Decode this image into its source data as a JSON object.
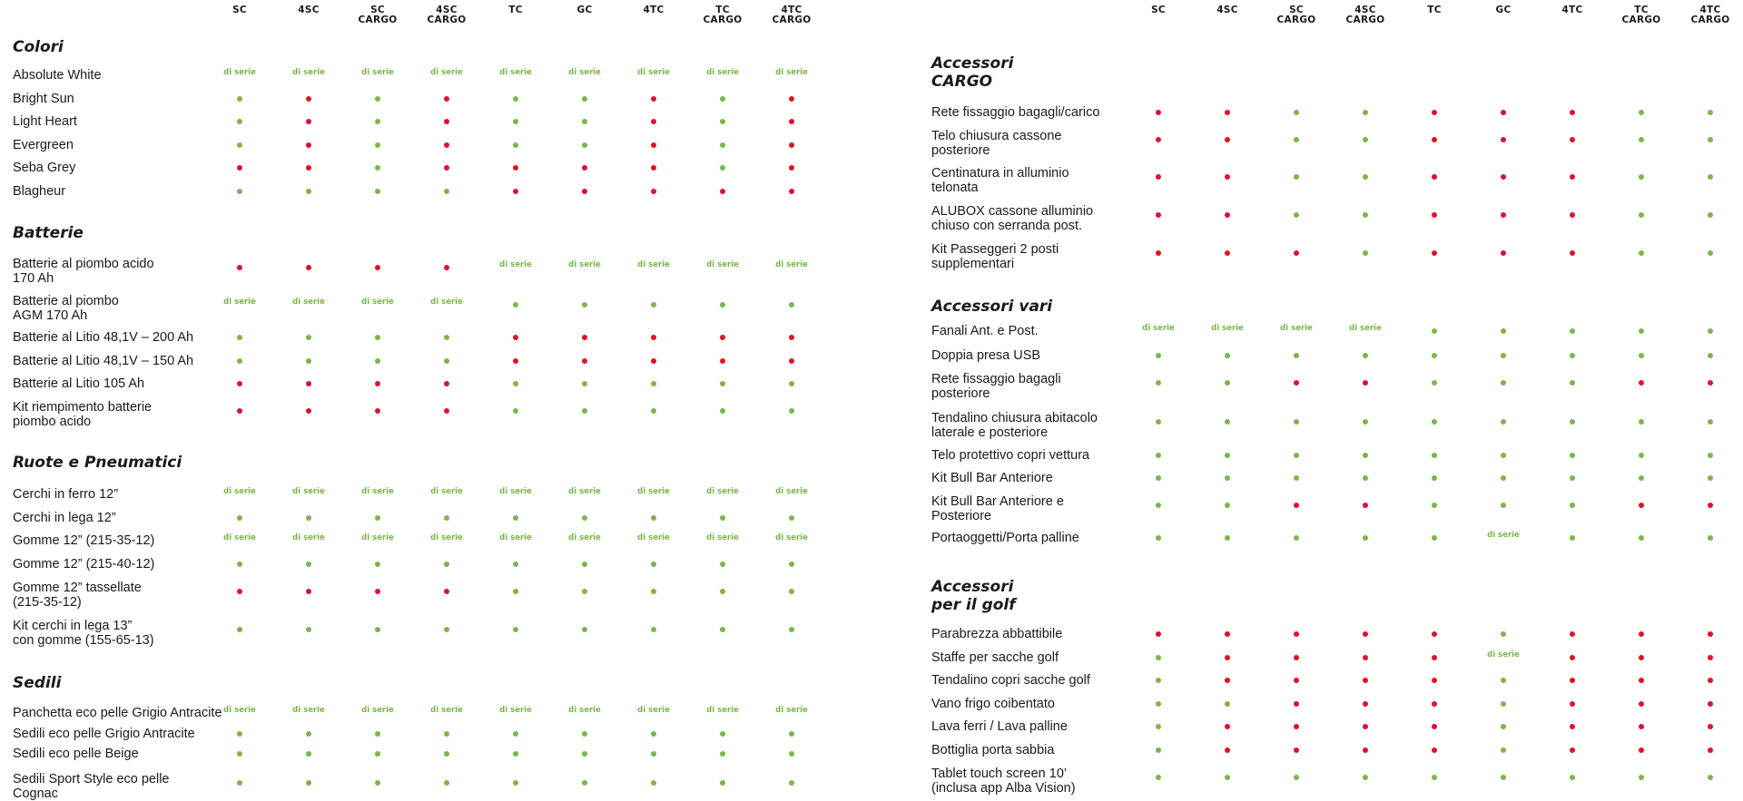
{
  "models": [
    "SC",
    "4SC",
    "SC\nCARGO",
    "4SC\nCARGO",
    "TC",
    "GC",
    "4TC",
    "TC\nCARGO",
    "4TC\nCARGO"
  ],
  "standard_label": "di serie",
  "colors": {
    "available": "#7ab648",
    "not_available": "#e0112b",
    "standard": "#7ab648"
  },
  "legend_codes": {
    "g": "available",
    "r": "not available",
    "s": "di serie"
  },
  "left": {
    "sections": [
      {
        "title": "Colori",
        "rows": [
          {
            "label": "Absolute White",
            "values": [
              "s",
              "s",
              "s",
              "s",
              "s",
              "s",
              "s",
              "s",
              "s"
            ]
          },
          {
            "label": "Bright Sun",
            "values": [
              "g",
              "r",
              "g",
              "r",
              "g",
              "g",
              "r",
              "g",
              "r"
            ]
          },
          {
            "label": "Light Heart",
            "values": [
              "g",
              "r",
              "g",
              "r",
              "g",
              "g",
              "r",
              "g",
              "r"
            ]
          },
          {
            "label": "Evergreen",
            "values": [
              "g",
              "r",
              "g",
              "r",
              "g",
              "g",
              "r",
              "g",
              "r"
            ]
          },
          {
            "label": "Seba Grey",
            "values": [
              "r",
              "r",
              "g",
              "r",
              "r",
              "r",
              "r",
              "g",
              "r"
            ]
          },
          {
            "label": "Blagheur",
            "values": [
              "g",
              "g",
              "g",
              "g",
              "r",
              "r",
              "r",
              "r",
              "r"
            ]
          }
        ]
      },
      {
        "title": "Batterie",
        "rows": [
          {
            "label": "Batterie al piombo acido\n170 Ah",
            "values": [
              "r",
              "r",
              "r",
              "r",
              "s",
              "s",
              "s",
              "s",
              "s"
            ]
          },
          {
            "label": "Batterie al piombo\nAGM 170 Ah",
            "values": [
              "s",
              "s",
              "s",
              "s",
              "g",
              "g",
              "g",
              "g",
              "g"
            ]
          },
          {
            "label": "Batterie al Litio 48,1V – 200 Ah",
            "values": [
              "g",
              "g",
              "g",
              "g",
              "r",
              "r",
              "r",
              "r",
              "r"
            ]
          },
          {
            "label": "Batterie al Litio 48,1V – 150 Ah",
            "values": [
              "g",
              "g",
              "g",
              "g",
              "r",
              "r",
              "r",
              "r",
              "r"
            ]
          },
          {
            "label": "Batterie al Litio 105 Ah",
            "values": [
              "r",
              "r",
              "r",
              "r",
              "g",
              "g",
              "g",
              "g",
              "g"
            ]
          },
          {
            "label": "Kit riempimento batterie\npiombo acido",
            "values": [
              "r",
              "r",
              "r",
              "r",
              "g",
              "g",
              "g",
              "g",
              "g"
            ]
          }
        ]
      },
      {
        "title": "Ruote e Pneumatici",
        "rows": [
          {
            "label": "Cerchi in ferro 12”",
            "values": [
              "s",
              "s",
              "s",
              "s",
              "s",
              "s",
              "s",
              "s",
              "s"
            ]
          },
          {
            "label": "Cerchi in lega 12”",
            "values": [
              "g",
              "g",
              "g",
              "g",
              "g",
              "g",
              "g",
              "g",
              "g"
            ]
          },
          {
            "label": "Gomme 12” (215-35-12)",
            "values": [
              "s",
              "s",
              "s",
              "s",
              "s",
              "s",
              "s",
              "s",
              "s"
            ]
          },
          {
            "label": "Gomme 12” (215-40-12)",
            "values": [
              "g",
              "g",
              "g",
              "g",
              "g",
              "g",
              "g",
              "g",
              "g"
            ]
          },
          {
            "label": "Gomme 12” tassellate\n(215-35-12)",
            "values": [
              "r",
              "r",
              "r",
              "r",
              "g",
              "g",
              "g",
              "g",
              "g"
            ]
          },
          {
            "label": "Kit cerchi in lega 13”\ncon gomme (155-65-13)",
            "values": [
              "g",
              "g",
              "g",
              "g",
              "g",
              "g",
              "g",
              "g",
              "g"
            ]
          }
        ]
      },
      {
        "title": "Sedili",
        "rows": [
          {
            "label": "Panchetta eco pelle Grigio Antracite",
            "values": [
              "s",
              "s",
              "s",
              "s",
              "s",
              "s",
              "s",
              "s",
              "s"
            ]
          },
          {
            "label": "Sedili eco pelle Grigio Antracite",
            "values": [
              "g",
              "g",
              "g",
              "g",
              "g",
              "g",
              "g",
              "g",
              "g"
            ]
          },
          {
            "label": "Sedili eco pelle Beige",
            "values": [
              "g",
              "g",
              "g",
              "g",
              "g",
              "g",
              "g",
              "g",
              "g"
            ]
          },
          {
            "label": "Sedili Sport Style eco pelle\nCognac",
            "values": [
              "g",
              "g",
              "g",
              "g",
              "g",
              "g",
              "g",
              "g",
              "g"
            ]
          }
        ]
      }
    ]
  },
  "right": {
    "sections": [
      {
        "title": "Accessori\nCARGO",
        "rows": [
          {
            "label": "Rete fissaggio bagagli/carico",
            "values": [
              "r",
              "r",
              "g",
              "g",
              "r",
              "r",
              "r",
              "g",
              "g"
            ]
          },
          {
            "label": "Telo chiusura cassone\nposteriore",
            "values": [
              "r",
              "r",
              "g",
              "g",
              "r",
              "r",
              "r",
              "g",
              "g"
            ]
          },
          {
            "label": "Centinatura in alluminio\ntelonata",
            "values": [
              "r",
              "r",
              "g",
              "g",
              "r",
              "r",
              "r",
              "g",
              "g"
            ]
          },
          {
            "label": "ALUBOX cassone alluminio\nchiuso con serranda post.",
            "values": [
              "r",
              "r",
              "g",
              "g",
              "r",
              "r",
              "r",
              "g",
              "g"
            ]
          },
          {
            "label": "Kit Passeggeri 2 posti\nsupplementari",
            "values": [
              "r",
              "r",
              "r",
              "g",
              "r",
              "r",
              "r",
              "g",
              "g"
            ]
          }
        ]
      },
      {
        "title": "Accessori vari",
        "rows": [
          {
            "label": "Fanali Ant. e Post.",
            "values": [
              "s",
              "s",
              "s",
              "s",
              "g",
              "g",
              "g",
              "g",
              "g"
            ]
          },
          {
            "label": "Doppia presa USB",
            "values": [
              "g",
              "g",
              "g",
              "g",
              "g",
              "g",
              "g",
              "g",
              "g"
            ]
          },
          {
            "label": "Rete fissaggio bagagli\nposteriore",
            "values": [
              "g",
              "g",
              "r",
              "r",
              "g",
              "g",
              "g",
              "r",
              "r"
            ]
          },
          {
            "label": "Tendalino chiusura abitacolo\nlaterale e posteriore",
            "values": [
              "g",
              "g",
              "g",
              "g",
              "g",
              "g",
              "g",
              "g",
              "g"
            ]
          },
          {
            "label": "Telo protettivo copri vettura",
            "values": [
              "g",
              "g",
              "g",
              "g",
              "g",
              "g",
              "g",
              "g",
              "g"
            ]
          },
          {
            "label": "Kit Bull Bar Anteriore",
            "values": [
              "g",
              "g",
              "g",
              "g",
              "g",
              "g",
              "g",
              "g",
              "g"
            ]
          },
          {
            "label": "Kit Bull Bar Anteriore e\nPosteriore",
            "values": [
              "g",
              "g",
              "r",
              "r",
              "g",
              "g",
              "g",
              "r",
              "r"
            ]
          },
          {
            "label": "Portaoggetti/Porta palline",
            "values": [
              "g",
              "g",
              "g",
              "g",
              "g",
              "s",
              "g",
              "g",
              "g"
            ]
          }
        ]
      },
      {
        "title": "Accessori\nper il golf",
        "rows": [
          {
            "label": "Parabrezza abbattibile",
            "values": [
              "r",
              "r",
              "r",
              "r",
              "r",
              "g",
              "r",
              "r",
              "r"
            ]
          },
          {
            "label": "Staffe per sacche golf",
            "values": [
              "g",
              "r",
              "r",
              "r",
              "r",
              "s",
              "r",
              "r",
              "r"
            ]
          },
          {
            "label": "Tendalino copri sacche golf",
            "values": [
              "g",
              "r",
              "r",
              "r",
              "r",
              "g",
              "r",
              "r",
              "r"
            ]
          },
          {
            "label": "Vano frigo coibentato",
            "values": [
              "g",
              "g",
              "r",
              "r",
              "r",
              "g",
              "r",
              "r",
              "r"
            ]
          },
          {
            "label": "Lava ferri / Lava palline",
            "values": [
              "g",
              "r",
              "r",
              "r",
              "r",
              "g",
              "r",
              "r",
              "r"
            ]
          },
          {
            "label": "Bottiglia porta sabbia",
            "values": [
              "g",
              "r",
              "r",
              "r",
              "r",
              "g",
              "r",
              "r",
              "r"
            ]
          },
          {
            "label": "Tablet touch screen 10’\n(inclusa app Alba Vision)",
            "values": [
              "g",
              "g",
              "g",
              "g",
              "g",
              "g",
              "g",
              "g",
              "g"
            ]
          }
        ]
      }
    ]
  }
}
